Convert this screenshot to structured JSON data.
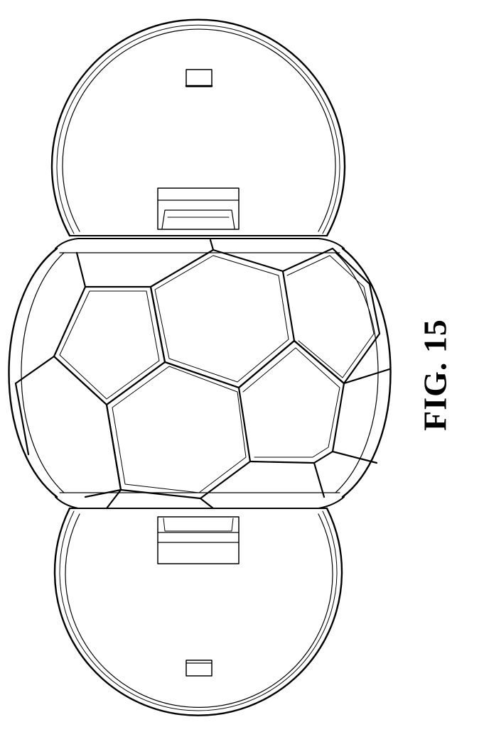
{
  "figure": {
    "label": "FIG. 15"
  },
  "colors": {
    "line": "#000000",
    "background": "#ffffff"
  }
}
